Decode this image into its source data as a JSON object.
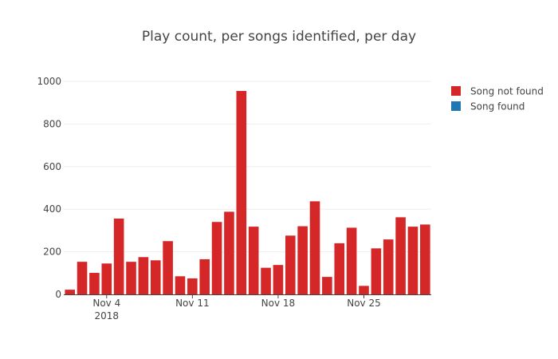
{
  "colors": {
    "not_found": "#d62728",
    "found": "#1f77b4",
    "grid": "#eeeeee",
    "axis": "#444444",
    "background": "#ffffff"
  },
  "chart_data": {
    "type": "bar",
    "title": "Play count, per songs identified, per day",
    "xlabel": "",
    "ylabel": "",
    "ylim": [
      0,
      1000
    ],
    "y_ticks": [
      0,
      200,
      400,
      600,
      800,
      1000
    ],
    "x": [
      "2018-11-01",
      "2018-11-02",
      "2018-11-03",
      "2018-11-04",
      "2018-11-05",
      "2018-11-06",
      "2018-11-07",
      "2018-11-08",
      "2018-11-09",
      "2018-11-10",
      "2018-11-11",
      "2018-11-12",
      "2018-11-13",
      "2018-11-14",
      "2018-11-15",
      "2018-11-16",
      "2018-11-17",
      "2018-11-18",
      "2018-11-19",
      "2018-11-20",
      "2018-11-21",
      "2018-11-22",
      "2018-11-23",
      "2018-11-24",
      "2018-11-25",
      "2018-11-26",
      "2018-11-27",
      "2018-11-28",
      "2018-11-29",
      "2018-11-30"
    ],
    "x_ticks": [
      {
        "date": "2018-11-04",
        "label": "Nov 4",
        "sublabel": "2018"
      },
      {
        "date": "2018-11-11",
        "label": "Nov 11",
        "sublabel": ""
      },
      {
        "date": "2018-11-18",
        "label": "Nov 18",
        "sublabel": ""
      },
      {
        "date": "2018-11-25",
        "label": "Nov 25",
        "sublabel": ""
      }
    ],
    "series": [
      {
        "name": "Song not found",
        "color": "#d62728",
        "values": [
          22,
          153,
          101,
          145,
          356,
          153,
          175,
          160,
          250,
          85,
          75,
          165,
          340,
          388,
          955,
          318,
          125,
          138,
          276,
          320,
          437,
          82,
          240,
          313,
          40,
          216,
          258,
          362,
          318,
          328
        ]
      },
      {
        "name": "Song found",
        "color": "#1f77b4",
        "values": [
          0,
          0,
          0,
          0,
          0,
          0,
          0,
          0,
          0,
          0,
          0,
          0,
          0,
          0,
          0,
          0,
          0,
          0,
          0,
          0,
          0,
          0,
          0,
          0,
          0,
          0,
          0,
          0,
          0,
          0
        ]
      }
    ],
    "legend": {
      "placement": "top-right",
      "items": [
        {
          "label": "Song not found",
          "color": "#d62728"
        },
        {
          "label": "Song found",
          "color": "#1f77b4"
        }
      ]
    },
    "grid": true
  }
}
